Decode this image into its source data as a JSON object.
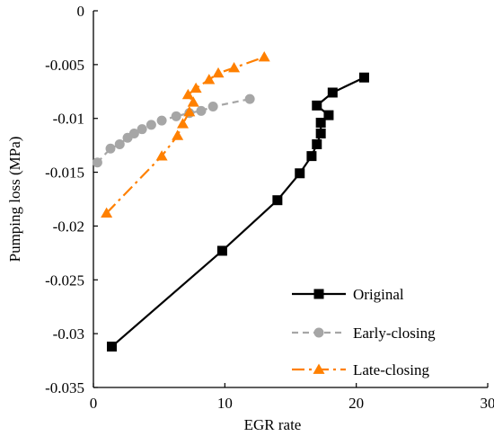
{
  "chart_data": {
    "type": "line",
    "title": "",
    "xlabel": "EGR  rate",
    "ylabel": "Pumping loss (MPa)",
    "xlim": [
      0,
      30
    ],
    "ylim": [
      -0.035,
      0
    ],
    "x_ticks": [
      "0",
      "10",
      "20",
      "30"
    ],
    "y_ticks": [
      "0",
      "-0.005",
      "-0.01",
      "-0.015",
      "-0.02",
      "-0.025",
      "-0.03",
      "-0.035"
    ],
    "grid": false,
    "legend_position": "bottom-right",
    "series": [
      {
        "name": "Original",
        "color": "#000000",
        "line_style": "solid",
        "marker": "square",
        "points": [
          {
            "x": 1.4,
            "y": -0.0312
          },
          {
            "x": 9.8,
            "y": -0.0223
          },
          {
            "x": 14.0,
            "y": -0.0176
          },
          {
            "x": 15.7,
            "y": -0.0151
          },
          {
            "x": 16.6,
            "y": -0.0135
          },
          {
            "x": 17.0,
            "y": -0.0124
          },
          {
            "x": 17.3,
            "y": -0.0114
          },
          {
            "x": 17.3,
            "y": -0.0104
          },
          {
            "x": 17.9,
            "y": -0.0097
          },
          {
            "x": 17.0,
            "y": -0.0088
          },
          {
            "x": 18.2,
            "y": -0.0076
          },
          {
            "x": 20.6,
            "y": -0.0062
          }
        ]
      },
      {
        "name": "Early-closing",
        "color": "#a6a6a6",
        "line_style": "dashed",
        "marker": "circle",
        "points": [
          {
            "x": 0.3,
            "y": -0.0141
          },
          {
            "x": 1.3,
            "y": -0.0128
          },
          {
            "x": 2.0,
            "y": -0.0124
          },
          {
            "x": 2.6,
            "y": -0.0118
          },
          {
            "x": 3.1,
            "y": -0.0114
          },
          {
            "x": 3.7,
            "y": -0.011
          },
          {
            "x": 4.4,
            "y": -0.0106
          },
          {
            "x": 5.2,
            "y": -0.0102
          },
          {
            "x": 6.3,
            "y": -0.0098
          },
          {
            "x": 7.3,
            "y": -0.0095
          },
          {
            "x": 8.2,
            "y": -0.0093
          },
          {
            "x": 9.1,
            "y": -0.0089
          },
          {
            "x": 11.9,
            "y": -0.0082
          }
        ]
      },
      {
        "name": "Late-closing",
        "color": "#ff8000",
        "line_style": "dashdot",
        "marker": "triangle",
        "points": [
          {
            "x": 1.0,
            "y": -0.0188
          },
          {
            "x": 5.2,
            "y": -0.0135
          },
          {
            "x": 6.4,
            "y": -0.0116
          },
          {
            "x": 6.8,
            "y": -0.0105
          },
          {
            "x": 7.3,
            "y": -0.0094
          },
          {
            "x": 7.6,
            "y": -0.0085
          },
          {
            "x": 7.2,
            "y": -0.0078
          },
          {
            "x": 7.8,
            "y": -0.0072
          },
          {
            "x": 8.8,
            "y": -0.0064
          },
          {
            "x": 9.5,
            "y": -0.0058
          },
          {
            "x": 10.7,
            "y": -0.0053
          },
          {
            "x": 13.0,
            "y": -0.0043
          }
        ]
      }
    ]
  }
}
